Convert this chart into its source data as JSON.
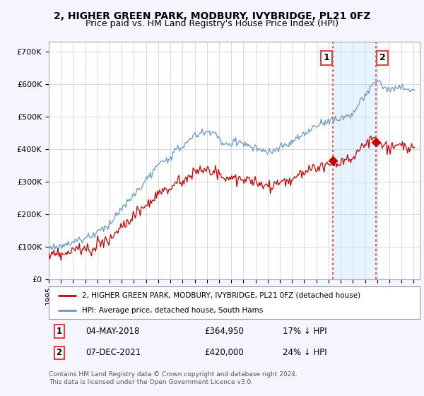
{
  "title": "2, HIGHER GREEN PARK, MODBURY, IVYBRIDGE, PL21 0FZ",
  "subtitle": "Price paid vs. HM Land Registry's House Price Index (HPI)",
  "ylabel_ticks": [
    "£0",
    "£100K",
    "£200K",
    "£300K",
    "£400K",
    "£500K",
    "£600K",
    "£700K"
  ],
  "ylim": [
    0,
    730000
  ],
  "xlim_start": 1995.0,
  "xlim_end": 2025.5,
  "xticks": [
    1995,
    1996,
    1997,
    1998,
    1999,
    2000,
    2001,
    2002,
    2003,
    2004,
    2005,
    2006,
    2007,
    2008,
    2009,
    2010,
    2011,
    2012,
    2013,
    2014,
    2015,
    2016,
    2017,
    2018,
    2019,
    2020,
    2021,
    2022,
    2023,
    2024,
    2025
  ],
  "transaction1_date": 2018.35,
  "transaction1_price": 364950,
  "transaction1_label": "1",
  "transaction2_date": 2021.92,
  "transaction2_price": 420000,
  "transaction2_label": "2",
  "hpi_color": "#6699cc",
  "price_color": "#cc0000",
  "vline_color": "#dd4444",
  "shade_color": "#ddeeff",
  "background_color": "#f5f5ff",
  "plot_bg_color": "#ffffff",
  "grid_color": "#cccccc",
  "legend_label_price": "2, HIGHER GREEN PARK, MODBURY, IVYBRIDGE, PL21 0FZ (detached house)",
  "legend_label_hpi": "HPI: Average price, detached house, South Hams",
  "footer": "Contains HM Land Registry data © Crown copyright and database right 2024.\nThis data is licensed under the Open Government Licence v3.0.",
  "title_fontsize": 10,
  "subtitle_fontsize": 9
}
